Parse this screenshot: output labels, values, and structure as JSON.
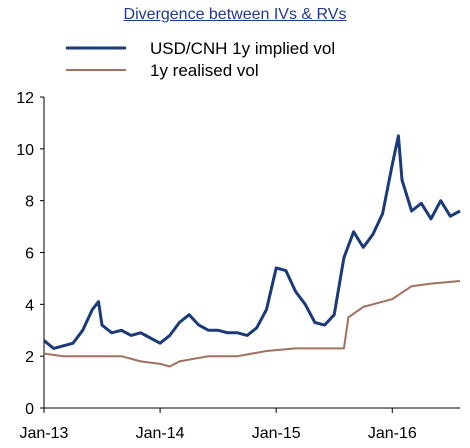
{
  "title": "Divergence between IVs & RVs",
  "chart_data": {
    "type": "line",
    "title": "Divergence between IVs & RVs",
    "xlabel": "",
    "ylabel": "",
    "ylim": [
      0,
      12
    ],
    "yticks": [
      0,
      2,
      4,
      6,
      8,
      10,
      12
    ],
    "xticks": [
      "Jan-13",
      "Jan-14",
      "Jan-15",
      "Jan-16"
    ],
    "xlim": [
      "2013-01",
      "2016-08"
    ],
    "grid": false,
    "legend": "top-left",
    "series": [
      {
        "name": "USD/CNH 1y implied vol",
        "color": "#1a3a7a",
        "points": [
          [
            "2013-01",
            2.6
          ],
          [
            "2013-02",
            2.3
          ],
          [
            "2013-03",
            2.4
          ],
          [
            "2013-04",
            2.5
          ],
          [
            "2013-05",
            3.0
          ],
          [
            "2013-06",
            3.8
          ],
          [
            "2013-06-20",
            4.1
          ],
          [
            "2013-07",
            3.2
          ],
          [
            "2013-08",
            2.9
          ],
          [
            "2013-09",
            3.0
          ],
          [
            "2013-10",
            2.8
          ],
          [
            "2013-11",
            2.9
          ],
          [
            "2013-12",
            2.7
          ],
          [
            "2014-01",
            2.5
          ],
          [
            "2014-02",
            2.8
          ],
          [
            "2014-03",
            3.3
          ],
          [
            "2014-04",
            3.6
          ],
          [
            "2014-05",
            3.2
          ],
          [
            "2014-06",
            3.0
          ],
          [
            "2014-07",
            3.0
          ],
          [
            "2014-08",
            2.9
          ],
          [
            "2014-09",
            2.9
          ],
          [
            "2014-10",
            2.8
          ],
          [
            "2014-11",
            3.1
          ],
          [
            "2014-12",
            3.8
          ],
          [
            "2015-01",
            5.4
          ],
          [
            "2015-02",
            5.3
          ],
          [
            "2015-03",
            4.5
          ],
          [
            "2015-04",
            4.0
          ],
          [
            "2015-05",
            3.3
          ],
          [
            "2015-06",
            3.2
          ],
          [
            "2015-07",
            3.6
          ],
          [
            "2015-08",
            5.8
          ],
          [
            "2015-09",
            6.8
          ],
          [
            "2015-10",
            6.2
          ],
          [
            "2015-11",
            6.7
          ],
          [
            "2015-12",
            7.5
          ],
          [
            "2016-01",
            9.4
          ],
          [
            "2016-01-20",
            10.5
          ],
          [
            "2016-02",
            8.8
          ],
          [
            "2016-03",
            7.6
          ],
          [
            "2016-04",
            7.9
          ],
          [
            "2016-05",
            7.3
          ],
          [
            "2016-06",
            8.0
          ],
          [
            "2016-07",
            7.4
          ],
          [
            "2016-08",
            7.6
          ]
        ]
      },
      {
        "name": "1y realised vol",
        "color": "#a07060",
        "points": [
          [
            "2013-01",
            2.1
          ],
          [
            "2013-03",
            2.0
          ],
          [
            "2013-06",
            2.0
          ],
          [
            "2013-09",
            2.0
          ],
          [
            "2013-11",
            1.8
          ],
          [
            "2014-01",
            1.7
          ],
          [
            "2014-02",
            1.6
          ],
          [
            "2014-03",
            1.8
          ],
          [
            "2014-06",
            2.0
          ],
          [
            "2014-09",
            2.0
          ],
          [
            "2014-12",
            2.2
          ],
          [
            "2015-03",
            2.3
          ],
          [
            "2015-06",
            2.3
          ],
          [
            "2015-08",
            2.3
          ],
          [
            "2015-08-15",
            3.5
          ],
          [
            "2015-10",
            3.9
          ],
          [
            "2016-01",
            4.2
          ],
          [
            "2016-03",
            4.7
          ],
          [
            "2016-05",
            4.8
          ],
          [
            "2016-08",
            4.9
          ]
        ]
      }
    ]
  }
}
